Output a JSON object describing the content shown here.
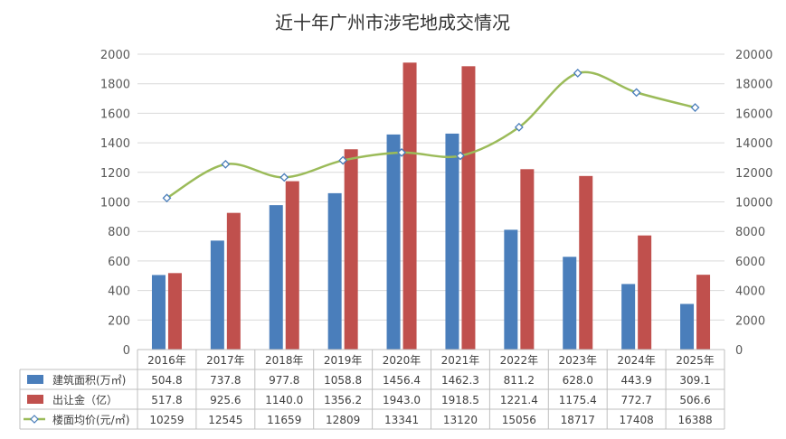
{
  "chart_data": {
    "type": "bar",
    "title": "近十年广州市涉宅地成交情况",
    "categories": [
      "2016年",
      "2017年",
      "2018年",
      "2019年",
      "2020年",
      "2021年",
      "2022年",
      "2023年",
      "2024年",
      "2025年"
    ],
    "series": [
      {
        "name": "建筑面积(万㎡)",
        "type": "bar",
        "axis": "left",
        "color": "#4a7ebb",
        "values": [
          504.8,
          737.8,
          977.8,
          1058.8,
          1456.4,
          1462.3,
          811.2,
          628.0,
          443.9,
          309.1
        ],
        "labels": [
          "504.8",
          "737.8",
          "977.8",
          "1058.8",
          "1456.4",
          "1462.3",
          "811.2",
          "628.0",
          "443.9",
          "309.1"
        ]
      },
      {
        "name": "出让金（亿）",
        "type": "bar",
        "axis": "left",
        "color": "#c0504d",
        "values": [
          517.8,
          925.6,
          1140.0,
          1356.2,
          1943.0,
          1918.5,
          1221.4,
          1175.4,
          772.7,
          506.6
        ],
        "labels": [
          "517.8",
          "925.6",
          "1140.0",
          "1356.2",
          "1943.0",
          "1918.5",
          "1221.4",
          "1175.4",
          "772.7",
          "506.6"
        ]
      },
      {
        "name": "楼面均价(元/㎡)",
        "type": "line",
        "axis": "right",
        "color": "#9bbb59",
        "values": [
          10259,
          12545,
          11659,
          12809,
          13341,
          13120,
          15056,
          18717,
          17408,
          16388
        ],
        "labels": [
          "10259",
          "12545",
          "11659",
          "12809",
          "13341",
          "13120",
          "15056",
          "18717",
          "17408",
          "16388"
        ]
      }
    ],
    "ylim": [
      0,
      2000
    ],
    "y2lim": [
      0,
      20000
    ],
    "yticks": [
      "0",
      "200",
      "400",
      "600",
      "800",
      "1000",
      "1200",
      "1400",
      "1600",
      "1800",
      "2000"
    ],
    "y2ticks": [
      "0",
      "2000",
      "4000",
      "6000",
      "8000",
      "10000",
      "12000",
      "14000",
      "16000",
      "18000",
      "20000"
    ],
    "grid": true,
    "legend": "data-table-bottom"
  }
}
